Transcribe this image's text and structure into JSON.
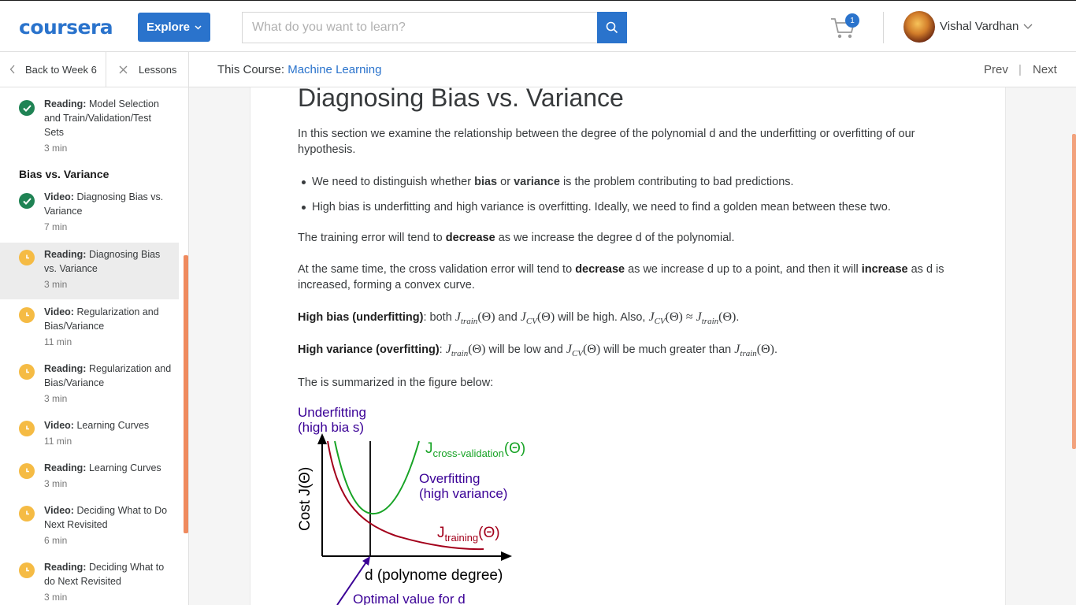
{
  "header": {
    "logo": "coursera",
    "explore_label": "Explore",
    "search_placeholder": "What do you want to learn?",
    "cart_count": "1",
    "user_name": "Vishal Vardhan"
  },
  "subnav": {
    "back_label": "Back to Week 6",
    "lessons_label": "Lessons",
    "course_prefix": "This Course:",
    "course_name": "Machine Learning",
    "prev_label": "Prev",
    "next_label": "Next"
  },
  "sidebar": {
    "section_title": "Bias vs. Variance",
    "items": [
      {
        "type": "Reading:",
        "name": "Model Selection and Train/Validation/Test Sets",
        "duration": "3 min",
        "status": "done"
      },
      {
        "type": "Video:",
        "name": "Diagnosing Bias vs. Variance",
        "duration": "7 min",
        "status": "done"
      },
      {
        "type": "Reading:",
        "name": "Diagnosing Bias vs. Variance",
        "duration": "3 min",
        "status": "pending",
        "active": true
      },
      {
        "type": "Video:",
        "name": "Regularization and Bias/Variance",
        "duration": "11 min",
        "status": "pending"
      },
      {
        "type": "Reading:",
        "name": "Regularization and Bias/Variance",
        "duration": "3 min",
        "status": "pending"
      },
      {
        "type": "Video:",
        "name": "Learning Curves",
        "duration": "11 min",
        "status": "pending"
      },
      {
        "type": "Reading:",
        "name": "Learning Curves",
        "duration": "3 min",
        "status": "pending"
      },
      {
        "type": "Video:",
        "name": "Deciding What to Do Next Revisited",
        "duration": "6 min",
        "status": "pending"
      },
      {
        "type": "Reading:",
        "name": "Deciding What to do Next Revisited",
        "duration": "3 min",
        "status": "pending"
      }
    ]
  },
  "article": {
    "title": "Diagnosing Bias vs. Variance",
    "intro": "In this section we examine the relationship between the degree of the polynomial d and the underfitting or overfitting of our hypothesis.",
    "bullet1_pre": "We need to distinguish whether ",
    "bullet1_b1": "bias",
    "bullet1_mid": " or ",
    "bullet1_b2": "variance",
    "bullet1_post": " is the problem contributing to bad predictions.",
    "bullet2": "High bias is underfitting and high variance is overfitting. Ideally, we need to find a golden mean between these two.",
    "p_train_pre": "The training error will tend to ",
    "p_train_b": "decrease",
    "p_train_post": " as we increase the degree d of the polynomial.",
    "p_cv_pre": "At the same time, the cross validation error will tend to ",
    "p_cv_b1": "decrease",
    "p_cv_mid": " as we increase d up to a point, and then it will ",
    "p_cv_b2": "increase",
    "p_cv_post": " as d is increased, forming a convex curve.",
    "hb_label": "High bias (underfitting)",
    "hb_t1": ": both ",
    "hb_t2": " and ",
    "hb_t3": " will be high. Also, ",
    "hv_label": "High variance (overfitting)",
    "hv_t1": ": ",
    "hv_t2": " will be low and ",
    "hv_t3": " will be much greater than ",
    "summary": "The is summarized in the figure below:"
  },
  "figure": {
    "underfit_line1": "Underfitting",
    "underfit_line2": "(high bia s)",
    "cv_label": "J",
    "cv_sub": "cross-validation",
    "theta": "(Θ)",
    "overfit_line1": "Overfitting",
    "overfit_line2": "(high variance)",
    "train_label": "J",
    "train_sub": "training",
    "y_axis": "Cost J(Θ)",
    "x_axis": "d (polynome degree)",
    "optimal": "Optimal value for d",
    "colors": {
      "purple": "#3a0096",
      "green": "#17a325",
      "red": "#a3001b"
    }
  }
}
